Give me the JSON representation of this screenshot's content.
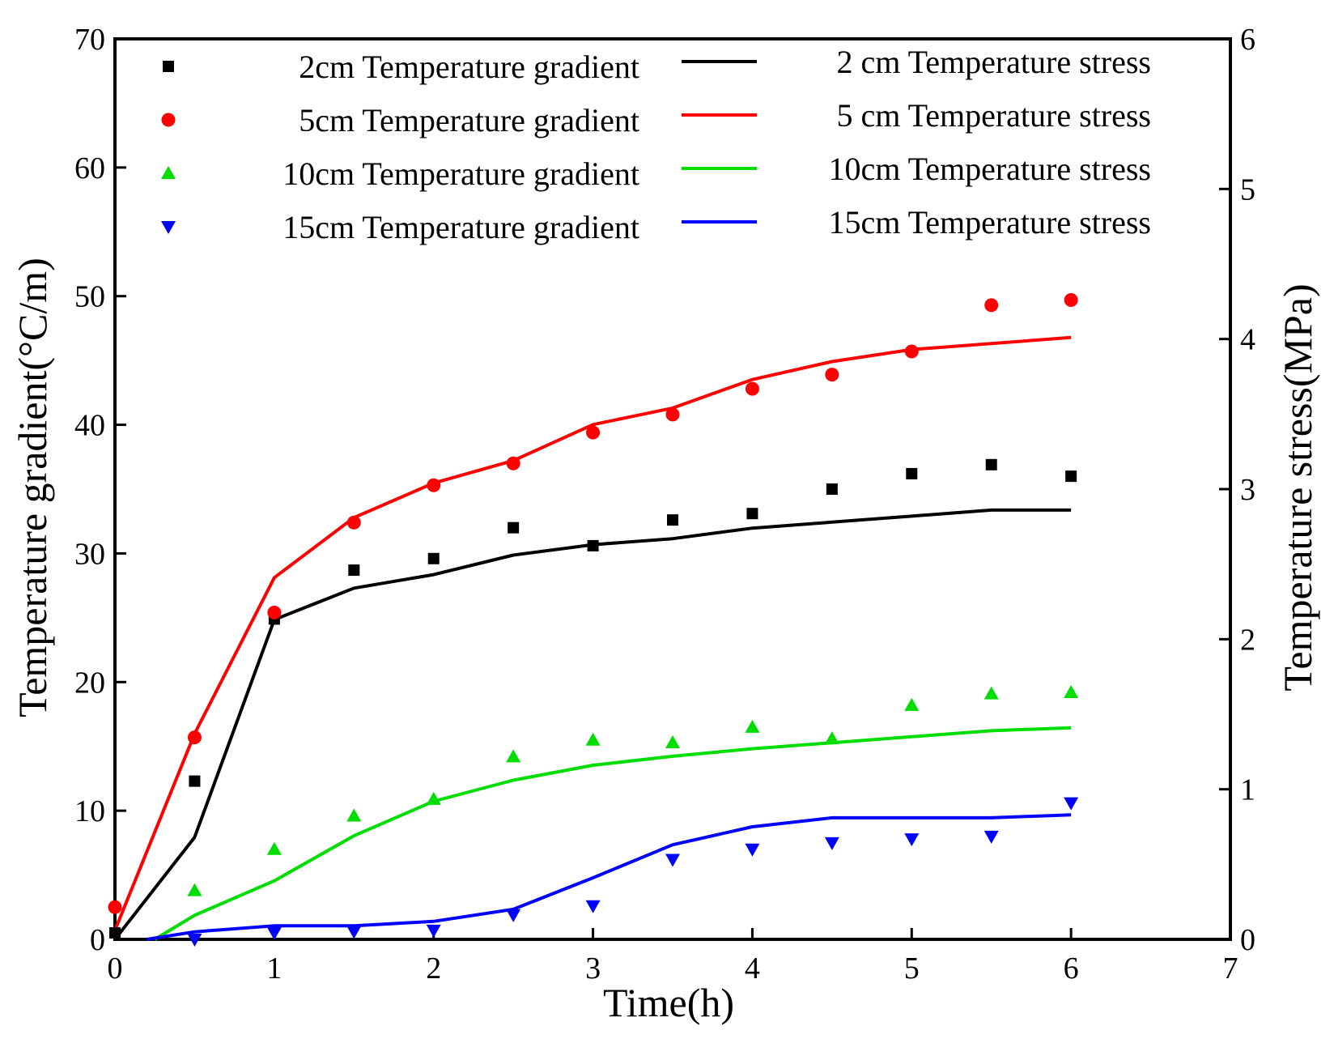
{
  "chart_data": {
    "type": "line",
    "x_axis": {
      "label": "Time(h)",
      "lim": [
        0,
        7
      ],
      "ticks": [
        0,
        1,
        2,
        3,
        4,
        5,
        6,
        7
      ]
    },
    "y_axis_left": {
      "label": "Temperature gradient(°C/m)",
      "lim": [
        0,
        70
      ],
      "ticks": [
        0,
        10,
        20,
        30,
        40,
        50,
        60,
        70
      ]
    },
    "y_axis_right": {
      "label": "Temperature stress(MPa)",
      "lim": [
        0,
        6
      ],
      "ticks": [
        0,
        1,
        2,
        3,
        4,
        5,
        6
      ]
    },
    "grid": false,
    "legend_position": "top",
    "x": [
      0,
      0.5,
      1,
      1.5,
      2,
      2.5,
      3,
      3.5,
      4,
      4.5,
      5,
      5.5,
      6
    ],
    "gradient_series": [
      {
        "name": "2cm Temperature gradient",
        "marker": "square",
        "color": "#000000",
        "values": [
          0.5,
          12.3,
          24.9,
          28.7,
          29.6,
          32.0,
          30.6,
          32.6,
          33.1,
          35.0,
          36.2,
          36.9,
          36.0
        ]
      },
      {
        "name": "5cm Temperature gradient",
        "marker": "circle",
        "color": "#ff0000",
        "values": [
          2.5,
          15.7,
          25.4,
          32.4,
          35.3,
          37.0,
          39.4,
          40.8,
          42.8,
          43.9,
          45.7,
          49.3,
          49.7
        ]
      },
      {
        "name": "10cm Temperature gradient",
        "marker": "triangle-up",
        "color": "#00dd00",
        "values": [
          null,
          3.8,
          7.0,
          9.6,
          10.9,
          14.2,
          15.5,
          15.3,
          16.5,
          15.6,
          18.2,
          19.1,
          19.2
        ]
      },
      {
        "name": "15cm Temperature gradient",
        "marker": "triangle-down",
        "color": "#0000ff",
        "values": [
          null,
          0.0,
          0.5,
          0.6,
          0.7,
          1.9,
          2.6,
          6.2,
          7.0,
          7.5,
          7.8,
          8.0,
          10.6
        ]
      }
    ],
    "stress_series": [
      {
        "name": "2 cm Temperature stress",
        "color": "#000000",
        "values": [
          0.0,
          0.68,
          2.13,
          2.34,
          2.43,
          2.56,
          2.63,
          2.67,
          2.74,
          2.78,
          2.82,
          2.86,
          2.86
        ]
      },
      {
        "name": "5 cm Temperature stress",
        "color": "#ff0000",
        "values": [
          0.06,
          1.37,
          2.41,
          2.81,
          3.04,
          3.19,
          3.43,
          3.54,
          3.73,
          3.85,
          3.93,
          3.97,
          4.01
        ]
      },
      {
        "name": "10cm Temperature stress",
        "color": "#00dd00",
        "values": [
          null,
          0.16,
          0.39,
          0.69,
          0.92,
          1.06,
          1.16,
          1.22,
          1.27,
          1.31,
          1.35,
          1.39,
          1.41
        ]
      },
      {
        "name": "15cm Temperature stress",
        "color": "#0000ff",
        "values": [
          null,
          0.05,
          0.09,
          0.09,
          0.12,
          0.2,
          0.41,
          0.63,
          0.75,
          0.81,
          0.81,
          0.81,
          0.83
        ]
      }
    ],
    "stress_line_start": [
      {
        "x": 0,
        "y": 0.0
      },
      {
        "x": 0,
        "y": 0.06
      },
      {
        "x": 0.25,
        "y": 0.0
      },
      {
        "x": 0.2,
        "y": 0.0
      }
    ]
  }
}
